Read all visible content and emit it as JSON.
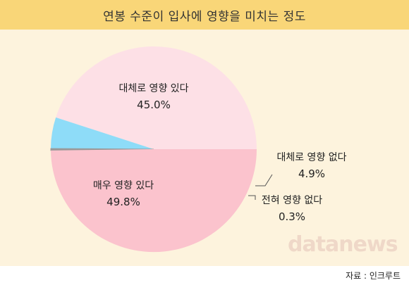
{
  "title": "연봉 수준이 입사에 영향을 미치는 정도",
  "source": "자료 : 인크루트",
  "watermark": "datanews",
  "colors": {
    "title_bg": "#f9d678",
    "chart_bg": "#fdf3dd"
  },
  "chart_data": {
    "type": "pie",
    "title": "연봉 수준이 입사에 영향을 미치는 정도",
    "slices": [
      {
        "label": "대체로 영향 있다",
        "value": 45.0,
        "value_label": "45.0%",
        "color": "#fde0e6"
      },
      {
        "label": "대체로 영향 없다",
        "value": 4.9,
        "value_label": "4.9%",
        "color": "#8edcf8"
      },
      {
        "label": "전혀 영향 없다",
        "value": 0.3,
        "value_label": "0.3%",
        "color": "#999999"
      },
      {
        "label": "매우 영향 있다",
        "value": 49.8,
        "value_label": "49.8%",
        "color": "#fbc3cd"
      }
    ]
  }
}
